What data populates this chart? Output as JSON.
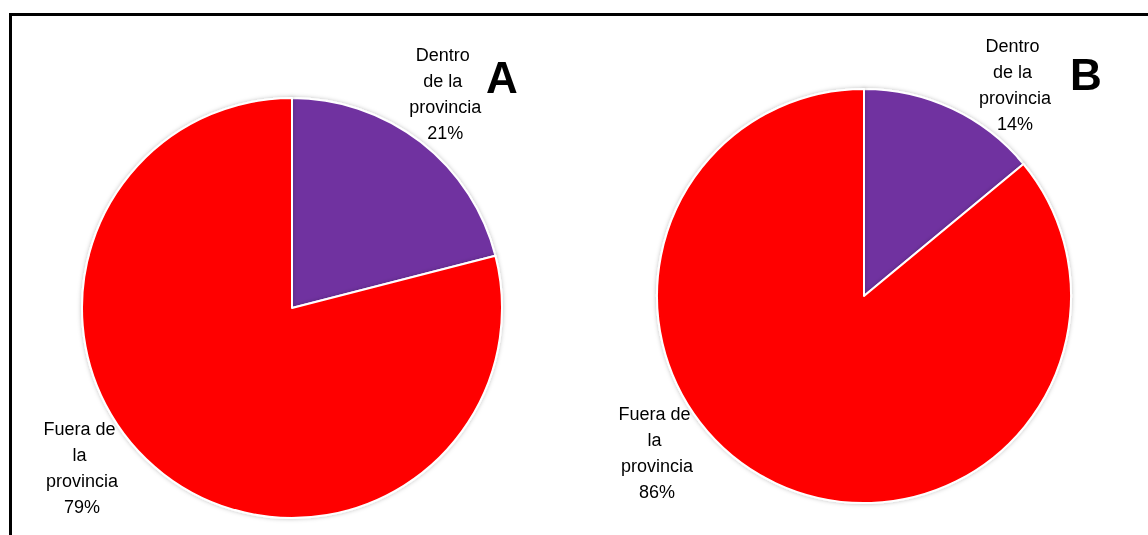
{
  "chart_data": [
    {
      "type": "pie",
      "title": "A",
      "categories": [
        "Dentro de la provincia",
        "Fuera de la provincia"
      ],
      "values": [
        21,
        79
      ],
      "colors": [
        "#7030a0",
        "#ff0000"
      ],
      "value_labels": [
        "21%",
        "79%"
      ]
    },
    {
      "type": "pie",
      "title": "B",
      "categories": [
        "Dentro de la provincia",
        "Fuera de la provincia"
      ],
      "values": [
        14,
        86
      ],
      "colors": [
        "#7030a0",
        "#ff0000"
      ],
      "value_labels": [
        "14%",
        "86%"
      ]
    }
  ]
}
